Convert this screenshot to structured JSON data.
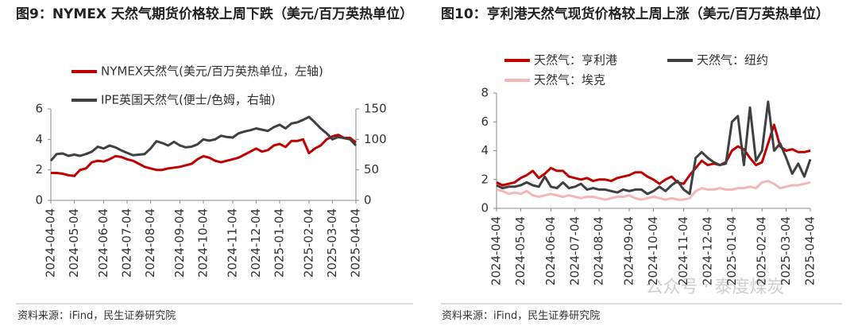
{
  "chart_data": [
    {
      "type": "line",
      "title": "图9：NYMEX 天然气期货价格较上周下跌（美元/百万英热单位）",
      "source": "资料来源：iFind，民生证券研究院",
      "categories": [
        "2024-04-04",
        null,
        null,
        null,
        "2024-05-04",
        null,
        null,
        null,
        null,
        "2024-06-04",
        null,
        null,
        null,
        "2024-07-04",
        null,
        null,
        null,
        "2024-08-04",
        null,
        null,
        null,
        null,
        "2024-09-04",
        null,
        null,
        null,
        "2024-10-04",
        null,
        null,
        null,
        null,
        "2024-11-04",
        null,
        null,
        null,
        "2024-12-04",
        null,
        null,
        null,
        "2025-01-04",
        null,
        null,
        null,
        null,
        "2025-02-04",
        null,
        null,
        null,
        "2025-03-04",
        null,
        null,
        null,
        "2025-04-04"
      ],
      "ylim": [
        0,
        6
      ],
      "yticks": [
        0,
        2,
        4,
        6
      ],
      "y2lim": [
        0,
        150
      ],
      "y2ticks": [
        0,
        50,
        100,
        150
      ],
      "series": [
        {
          "name": "NYMEX天然气(美元/百万英热单位，左轴)",
          "color": "#c00000",
          "values": [
            1.8,
            1.8,
            1.75,
            1.65,
            1.6,
            2.0,
            2.1,
            2.5,
            2.6,
            2.55,
            2.7,
            2.9,
            2.85,
            2.7,
            2.6,
            2.4,
            2.2,
            2.1,
            2.0,
            2.0,
            2.1,
            2.15,
            2.2,
            2.3,
            2.4,
            2.7,
            2.9,
            2.8,
            2.6,
            2.5,
            2.6,
            2.7,
            2.8,
            3.0,
            3.2,
            3.4,
            3.2,
            3.3,
            3.6,
            3.7,
            3.5,
            3.9,
            3.9,
            4.0,
            3.1,
            3.4,
            3.6,
            4.0,
            4.2,
            4.3,
            4.1,
            4.1,
            3.8
          ]
        },
        {
          "name": "IPE英国天然气(便士/色姆，右轴)",
          "color": "#404040",
          "axis": "y2",
          "values": [
            65,
            76,
            77,
            73,
            75,
            73,
            76,
            80,
            88,
            85,
            90,
            87,
            82,
            78,
            74,
            75,
            76,
            85,
            97,
            94,
            90,
            96,
            90,
            87,
            88,
            92,
            100,
            98,
            100,
            106,
            104,
            103,
            110,
            113,
            115,
            118,
            116,
            114,
            120,
            124,
            118,
            126,
            128,
            132,
            137,
            128,
            118,
            110,
            100,
            104,
            102,
            100,
            90
          ]
        }
      ]
    },
    {
      "type": "line",
      "title": "图10：亨利港天然气现货价格较上周上涨（美元/百万英热单位）",
      "source": "资料来源：iFind，民生证券研究院",
      "categories": [
        "2024-04-04",
        null,
        null,
        null,
        "2024-05-04",
        null,
        null,
        null,
        null,
        "2024-06-04",
        null,
        null,
        null,
        "2024-07-04",
        null,
        null,
        null,
        "2024-08-04",
        null,
        null,
        null,
        null,
        "2024-09-04",
        null,
        null,
        null,
        "2024-10-04",
        null,
        null,
        null,
        null,
        "2024-11-04",
        null,
        null,
        null,
        "2024-12-04",
        null,
        null,
        null,
        "2025-01-04",
        null,
        null,
        null,
        null,
        "2025-02-04",
        null,
        null,
        null,
        "2025-03-04",
        null,
        null,
        null,
        "2025-04-04"
      ],
      "ylim": [
        0,
        8
      ],
      "yticks": [
        0,
        2,
        4,
        6,
        8
      ],
      "series": [
        {
          "name": "天然气：亨利港",
          "color": "#c00000",
          "values": [
            1.8,
            1.6,
            1.7,
            1.8,
            2.1,
            2.3,
            2.6,
            2.1,
            2.4,
            2.8,
            2.6,
            2.6,
            2.2,
            2.1,
            2.0,
            2.1,
            1.9,
            2.0,
            2.0,
            1.9,
            2.1,
            2.2,
            2.3,
            2.5,
            2.5,
            2.2,
            2.0,
            1.7,
            2.0,
            2.2,
            1.8,
            1.7,
            2.3,
            2.8,
            3.3,
            3.0,
            3.1,
            3.0,
            3.2,
            4.0,
            4.3,
            4.1,
            3.5,
            3.0,
            3.2,
            4.5,
            5.8,
            4.3,
            4.0,
            4.1,
            3.9,
            3.9,
            4.0
          ]
        },
        {
          "name": "天然气：纽约",
          "color": "#404040",
          "values": [
            1.6,
            1.4,
            1.5,
            1.5,
            1.6,
            1.8,
            1.6,
            1.5,
            2.2,
            1.5,
            1.4,
            1.8,
            1.4,
            1.5,
            1.7,
            1.3,
            1.4,
            1.3,
            1.3,
            1.2,
            1.1,
            1.3,
            1.2,
            1.3,
            1.3,
            1.0,
            1.2,
            1.5,
            1.2,
            1.6,
            1.9,
            1.3,
            1.0,
            3.5,
            3.9,
            3.5,
            3.2,
            3.0,
            3.1,
            6.0,
            6.4,
            3.0,
            7.0,
            3.3,
            4.0,
            7.4,
            4.0,
            4.5,
            3.5,
            2.4,
            3.1,
            2.2,
            3.4
          ]
        },
        {
          "name": "天然气：埃克",
          "color": "#f4b6b6",
          "values": [
            1.3,
            1.2,
            1.0,
            1.1,
            1.0,
            1.2,
            0.9,
            0.8,
            0.9,
            1.0,
            0.9,
            0.8,
            0.9,
            0.8,
            0.7,
            0.8,
            0.8,
            0.7,
            0.6,
            0.7,
            0.8,
            0.8,
            0.9,
            0.7,
            0.6,
            0.7,
            0.8,
            0.7,
            0.6,
            0.7,
            0.6,
            0.6,
            0.7,
            1.2,
            1.4,
            1.3,
            1.3,
            1.4,
            1.3,
            1.3,
            1.4,
            1.4,
            1.5,
            1.4,
            1.8,
            1.9,
            1.7,
            1.4,
            1.5,
            1.6,
            1.6,
            1.7,
            1.8
          ]
        }
      ]
    }
  ],
  "watermark": "公众号 · 泰度煤炭"
}
